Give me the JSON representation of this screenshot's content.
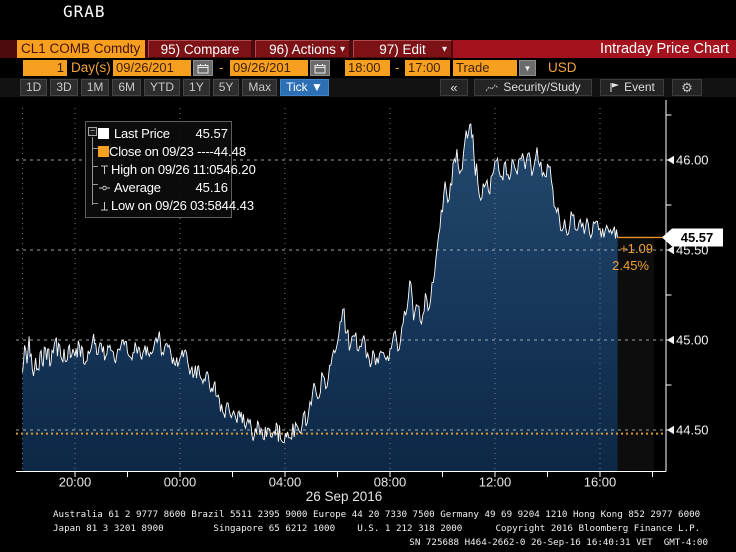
{
  "window": {
    "app_label": "GRAB"
  },
  "menu_bar": {
    "ticker": "CL1 COMB Comdty",
    "compare": "95) Compare",
    "actions": "96) Actions",
    "edit": "97) Edit",
    "dropdown_glyph": "▾",
    "title": "Intraday Price Chart"
  },
  "param_bar": {
    "count_value": "1",
    "count_label": "Day(s)",
    "date_from": "09/26/201",
    "range_sep": "-",
    "date_to": "09/26/201",
    "time_from": "18:00",
    "time_to": "17:00",
    "source": "Trade",
    "source_dd_glyph": "▼",
    "currency": "USD"
  },
  "tab_bar": {
    "ranges": [
      "1D",
      "3D",
      "1M",
      "6M",
      "YTD",
      "1Y",
      "5Y",
      "Max"
    ],
    "active": "Tick",
    "active_arrow": "▼",
    "collapse": "«",
    "security_study": "Security/Study",
    "event": "Event",
    "gear_glyph": "⚙"
  },
  "legend": {
    "items": [
      {
        "label": "Last Price",
        "value": "45.57"
      },
      {
        "label": "Close on 09/23 ----",
        "value": "44.48"
      },
      {
        "label": "High on 09/26 11:05",
        "value": "46.20"
      },
      {
        "label": "Average",
        "value": "45.16"
      },
      {
        "label": "Low on 09/26 03:58",
        "value": "44.43"
      }
    ]
  },
  "annotations": {
    "last_price": "45.57",
    "change": "+1.09",
    "change_pct": "2.45%"
  },
  "chart_data": {
    "type": "line",
    "subtype": "tick-area",
    "security": "CL1 COMB Comdty",
    "title": "Intraday Price Chart",
    "x_axis": {
      "session_start": "18:00",
      "session_end": "17:00",
      "date_label": "26 Sep 2016",
      "grid_hours": [
        0,
        2,
        6,
        10,
        14,
        18,
        22
      ],
      "tick_hours": [
        2,
        4,
        6,
        8,
        10,
        12,
        14,
        16,
        18,
        20,
        22,
        24
      ],
      "labels": [
        {
          "hour": 2,
          "text": "20:00"
        },
        {
          "hour": 6,
          "text": "00:00"
        },
        {
          "hour": 10,
          "text": "04:00"
        },
        {
          "hour": 14,
          "text": "08:00"
        },
        {
          "hour": 18,
          "text": "12:00"
        },
        {
          "hour": 22,
          "text": "16:00"
        }
      ]
    },
    "y_axis": {
      "min": 44.28,
      "max": 46.3,
      "labeled_ticks": [
        {
          "v": 46.0,
          "text": "46.00"
        },
        {
          "v": 45.5,
          "text": "45.50"
        },
        {
          "v": 45.0,
          "text": "45.00"
        },
        {
          "v": 44.5,
          "text": "44.50"
        }
      ],
      "minor_ticks": [
        46.25,
        45.75,
        45.25,
        44.75
      ]
    },
    "stats": {
      "last": 45.57,
      "close_0923": 44.48,
      "high": 46.2,
      "high_time": "09/26 11:05",
      "average": 45.16,
      "low": 44.43,
      "low_time": "09/26 03:58",
      "change": "+1.09",
      "change_pct": "2.45%"
    },
    "series": [
      {
        "name": "Last Price",
        "color": "#ffffff",
        "points": [
          [
            0.0,
            44.82
          ],
          [
            0.08,
            44.97
          ],
          [
            0.17,
            44.87
          ],
          [
            0.25,
            45.02
          ],
          [
            0.33,
            44.92
          ],
          [
            0.42,
            44.8
          ],
          [
            0.5,
            44.9
          ],
          [
            0.58,
            44.84
          ],
          [
            0.67,
            44.93
          ],
          [
            0.75,
            44.87
          ],
          [
            0.83,
            44.96
          ],
          [
            0.92,
            44.89
          ],
          [
            1.0,
            44.95
          ],
          [
            1.08,
            44.87
          ],
          [
            1.17,
            44.93
          ],
          [
            1.25,
            45.0
          ],
          [
            1.33,
            44.91
          ],
          [
            1.42,
            44.97
          ],
          [
            1.5,
            44.89
          ],
          [
            1.58,
            44.95
          ],
          [
            1.67,
            44.88
          ],
          [
            1.75,
            44.96
          ],
          [
            1.83,
            44.9
          ],
          [
            1.92,
            44.95
          ],
          [
            2.0,
            44.91
          ],
          [
            2.17,
            44.97
          ],
          [
            2.33,
            44.87
          ],
          [
            2.5,
            44.94
          ],
          [
            2.67,
            45.0
          ],
          [
            2.83,
            44.92
          ],
          [
            3.0,
            44.98
          ],
          [
            3.17,
            44.91
          ],
          [
            3.33,
            44.97
          ],
          [
            3.5,
            44.89
          ],
          [
            3.67,
            44.95
          ],
          [
            3.83,
            45.0
          ],
          [
            4.0,
            44.93
          ],
          [
            4.17,
            44.89
          ],
          [
            4.33,
            44.96
          ],
          [
            4.5,
            44.91
          ],
          [
            4.67,
            44.97
          ],
          [
            4.83,
            44.91
          ],
          [
            5.0,
            44.96
          ],
          [
            5.17,
            45.01
          ],
          [
            5.33,
            44.93
          ],
          [
            5.5,
            44.98
          ],
          [
            5.67,
            44.91
          ],
          [
            5.83,
            44.86
          ],
          [
            6.0,
            44.9
          ],
          [
            6.17,
            44.94
          ],
          [
            6.33,
            44.85
          ],
          [
            6.5,
            44.79
          ],
          [
            6.67,
            44.85
          ],
          [
            6.83,
            44.78
          ],
          [
            7.0,
            44.82
          ],
          [
            7.17,
            44.71
          ],
          [
            7.33,
            44.77
          ],
          [
            7.5,
            44.67
          ],
          [
            7.67,
            44.59
          ],
          [
            7.83,
            44.65
          ],
          [
            8.0,
            44.59
          ],
          [
            8.17,
            44.54
          ],
          [
            8.33,
            44.6
          ],
          [
            8.5,
            44.51
          ],
          [
            8.67,
            44.56
          ],
          [
            8.83,
            44.47
          ],
          [
            9.0,
            44.53
          ],
          [
            9.17,
            44.45
          ],
          [
            9.33,
            44.51
          ],
          [
            9.5,
            44.46
          ],
          [
            9.67,
            44.54
          ],
          [
            9.83,
            44.45
          ],
          [
            9.97,
            44.43
          ],
          [
            10.1,
            44.49
          ],
          [
            10.25,
            44.45
          ],
          [
            10.4,
            44.54
          ],
          [
            10.55,
            44.49
          ],
          [
            10.7,
            44.59
          ],
          [
            10.85,
            44.54
          ],
          [
            11.0,
            44.64
          ],
          [
            11.15,
            44.74
          ],
          [
            11.3,
            44.68
          ],
          [
            11.45,
            44.8
          ],
          [
            11.6,
            44.74
          ],
          [
            11.75,
            44.86
          ],
          [
            11.9,
            44.93
          ],
          [
            12.05,
            45.03
          ],
          [
            12.2,
            45.17
          ],
          [
            12.35,
            45.04
          ],
          [
            12.5,
            44.97
          ],
          [
            12.65,
            45.02
          ],
          [
            12.8,
            44.94
          ],
          [
            12.95,
            45.0
          ],
          [
            13.1,
            44.9
          ],
          [
            13.25,
            44.85
          ],
          [
            13.4,
            44.92
          ],
          [
            13.55,
            44.87
          ],
          [
            13.7,
            44.93
          ],
          [
            13.85,
            44.89
          ],
          [
            14.0,
            44.95
          ],
          [
            14.15,
            45.04
          ],
          [
            14.3,
            44.94
          ],
          [
            14.45,
            45.07
          ],
          [
            14.6,
            45.14
          ],
          [
            14.75,
            45.33
          ],
          [
            14.9,
            45.11
          ],
          [
            15.05,
            45.19
          ],
          [
            15.2,
            45.09
          ],
          [
            15.35,
            45.26
          ],
          [
            15.5,
            45.18
          ],
          [
            15.65,
            45.32
          ],
          [
            15.8,
            45.52
          ],
          [
            15.95,
            45.72
          ],
          [
            16.1,
            45.88
          ],
          [
            16.25,
            45.78
          ],
          [
            16.4,
            45.98
          ],
          [
            16.55,
            46.06
          ],
          [
            16.7,
            45.94
          ],
          [
            16.85,
            46.1
          ],
          [
            17.0,
            46.16
          ],
          [
            17.08,
            46.2
          ],
          [
            17.2,
            46.02
          ],
          [
            17.35,
            45.87
          ],
          [
            17.5,
            45.79
          ],
          [
            17.65,
            45.87
          ],
          [
            17.8,
            45.81
          ],
          [
            17.95,
            45.94
          ],
          [
            18.1,
            46.01
          ],
          [
            18.25,
            45.91
          ],
          [
            18.4,
            45.99
          ],
          [
            18.55,
            45.89
          ],
          [
            18.7,
            45.99
          ],
          [
            18.85,
            45.92
          ],
          [
            19.0,
            46.01
          ],
          [
            19.15,
            45.95
          ],
          [
            19.3,
            46.04
          ],
          [
            19.45,
            45.94
          ],
          [
            19.6,
            46.07
          ],
          [
            19.75,
            45.99
          ],
          [
            19.9,
            45.91
          ],
          [
            20.05,
            45.96
          ],
          [
            20.2,
            45.84
          ],
          [
            20.35,
            45.71
          ],
          [
            20.5,
            45.61
          ],
          [
            20.65,
            45.67
          ],
          [
            20.8,
            45.59
          ],
          [
            20.95,
            45.69
          ],
          [
            21.1,
            45.61
          ],
          [
            21.25,
            45.67
          ],
          [
            21.4,
            45.59
          ],
          [
            21.55,
            45.65
          ],
          [
            21.7,
            45.59
          ],
          [
            21.85,
            45.66
          ],
          [
            22.0,
            45.62
          ],
          [
            22.15,
            45.57
          ],
          [
            22.3,
            45.62
          ],
          [
            22.45,
            45.59
          ],
          [
            22.55,
            45.63
          ],
          [
            22.67,
            45.57
          ]
        ]
      }
    ]
  },
  "footer": {
    "line1": "Australia 61 2 9777 8600 Brazil 5511 2395 9000 Europe 44 20 7330 7500 Germany 49 69 9204 1210 Hong Kong 852 2977 6000",
    "line2": "Japan 81 3 3201 8900         Singapore 65 6212 1000    U.S. 1 212 318 2000      Copyright 2016 Bloomberg Finance L.P.",
    "line3": "SN 725688 H464-2662-0 26-Sep-16 16:40:31 VET  GMT-4:00"
  },
  "colors": {
    "accent_orange": "#f7a01f",
    "bar_red": "#a3121d",
    "tab_blue": "#2d6fb4",
    "fill_top": "#24496e",
    "fill_bottom": "#0d2845",
    "close_line": "#d69a3a",
    "price_line": "#ffffff",
    "change_text": "#f0a030",
    "grid_vertical": "#78879a",
    "grid_horizontal": "#c6ccd2"
  }
}
